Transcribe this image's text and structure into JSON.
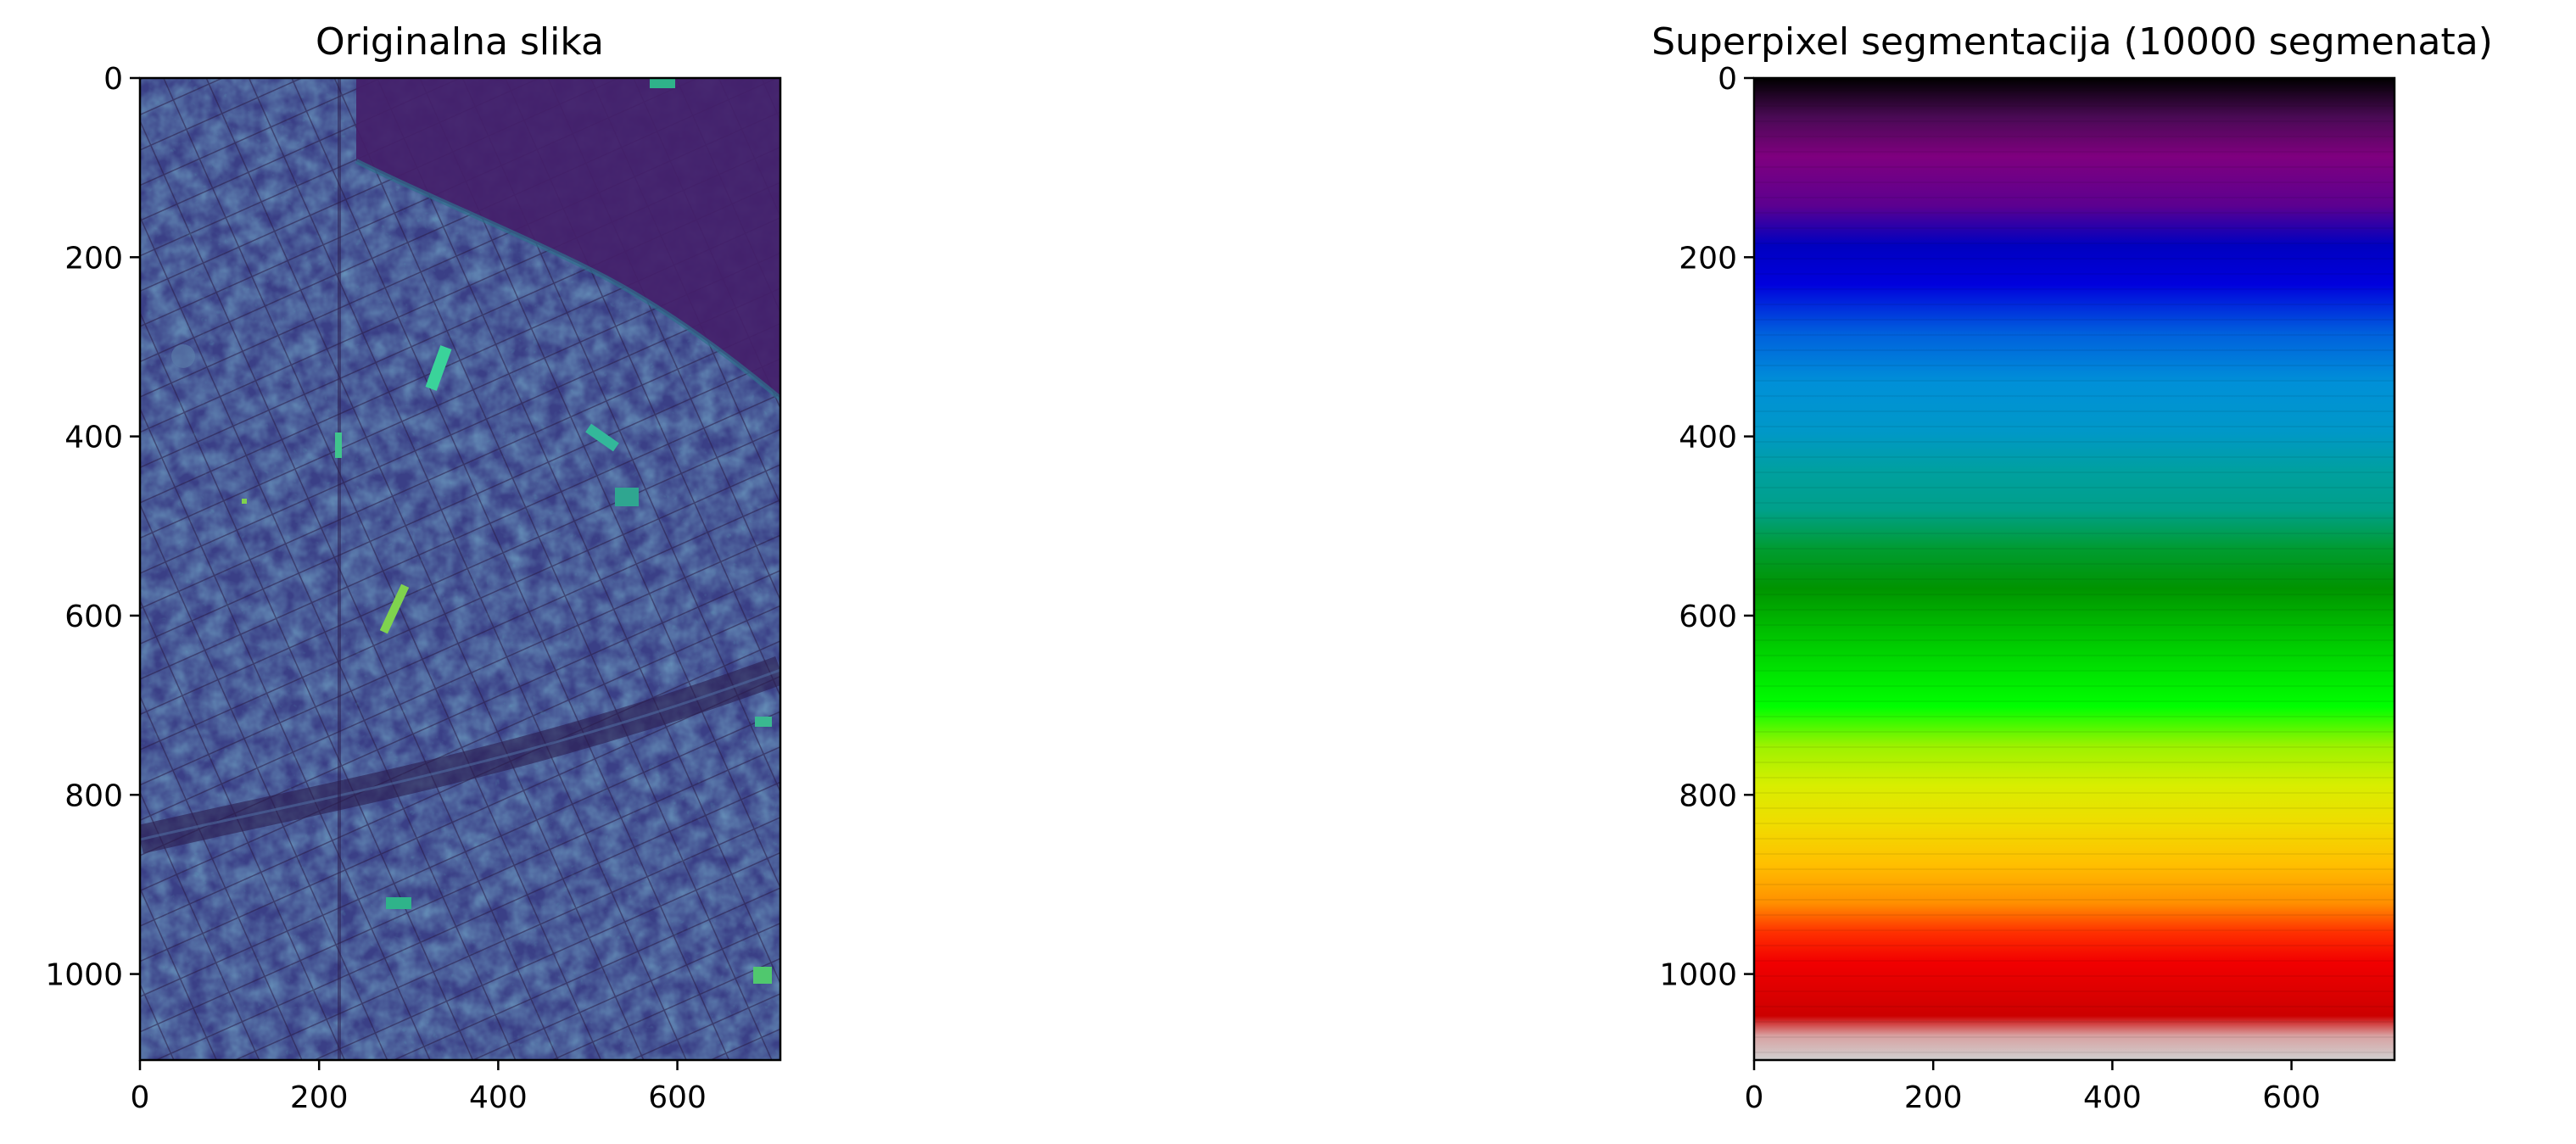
{
  "chart_data": [
    {
      "type": "image",
      "title": "Originalna slika",
      "colormap": "viridis",
      "xlim": [
        0,
        715
      ],
      "ylim": [
        1096,
        0
      ],
      "xticks": [
        0,
        200,
        400,
        600
      ],
      "yticks": [
        0,
        200,
        400,
        600,
        800,
        1000
      ],
      "xticklabels": [
        "0",
        "200",
        "400",
        "600"
      ],
      "yticklabels": [
        "0",
        "200",
        "400",
        "600",
        "800",
        "1000"
      ]
    },
    {
      "type": "image",
      "title": "Superpixel segmentacija (10000 segmenata)",
      "colormap": "nipy_spectral",
      "xlim": [
        0,
        715
      ],
      "ylim": [
        1096,
        0
      ],
      "xticks": [
        0,
        200,
        400,
        600
      ],
      "yticks": [
        0,
        200,
        400,
        600,
        800,
        1000
      ],
      "xticklabels": [
        "0",
        "200",
        "400",
        "600"
      ],
      "yticklabels": [
        "0",
        "200",
        "400",
        "600",
        "800",
        "1000"
      ],
      "segments": 10000
    }
  ],
  "colors": {
    "viridis_dark": "#3b1f5c",
    "viridis_mid": "#3a4f8a",
    "viridis_highlight": "#2fb38a",
    "viridis_bright": "#7fd34e"
  }
}
